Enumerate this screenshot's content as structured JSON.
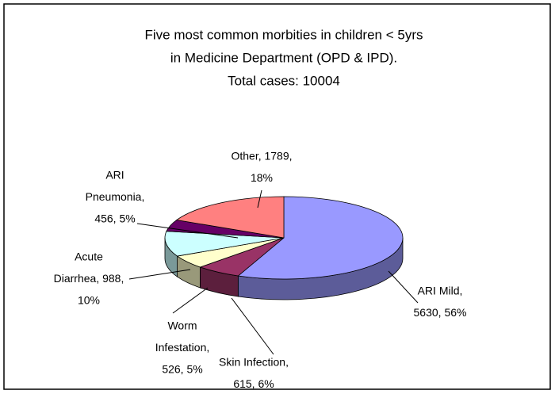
{
  "chart_data": {
    "type": "pie3d",
    "title": [
      "Five most common morbities in children < 5yrs",
      "in Medicine Department (OPD & IPD).",
      "Total cases: 10004"
    ],
    "values": [
      5630,
      615,
      526,
      988,
      456,
      1789
    ],
    "value_labels": [
      [
        "ARI Mild,",
        "5630, 56%"
      ],
      [
        "Skin Infection,",
        "615, 6%"
      ],
      [
        "Worm",
        "Infestation,",
        "526, 5%"
      ],
      [
        "Acute",
        "Diarrhea, 988,",
        "10%"
      ],
      [
        "ARI",
        "Pneumonia,",
        "456, 5%"
      ],
      [
        "Other, 1789,",
        "18%"
      ]
    ],
    "colors": [
      "#9999ff",
      "#993366",
      "#ffffcc",
      "#ccffff",
      "#660066",
      "#ff8080"
    ]
  }
}
